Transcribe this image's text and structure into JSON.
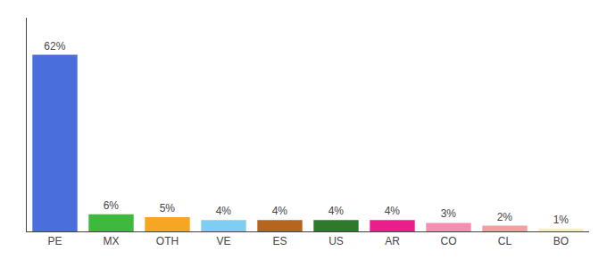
{
  "chart_data": {
    "type": "bar",
    "categories": [
      "PE",
      "MX",
      "OTH",
      "VE",
      "ES",
      "US",
      "AR",
      "CO",
      "CL",
      "BO"
    ],
    "values": [
      62,
      6,
      5,
      4,
      4,
      4,
      4,
      3,
      2,
      1
    ],
    "value_labels": [
      "62%",
      "6%",
      "5%",
      "4%",
      "4%",
      "4%",
      "4%",
      "3%",
      "2%",
      "1%"
    ],
    "colors": [
      "#4a6fdc",
      "#3dba3d",
      "#f5a623",
      "#7ecef4",
      "#b5651d",
      "#2d7a2d",
      "#e91e8c",
      "#f48fb1",
      "#f4a0a0",
      "#f5f0c0"
    ],
    "ylim": [
      0,
      75
    ],
    "data_labels": true,
    "tick_labels": "x",
    "grid": false
  }
}
